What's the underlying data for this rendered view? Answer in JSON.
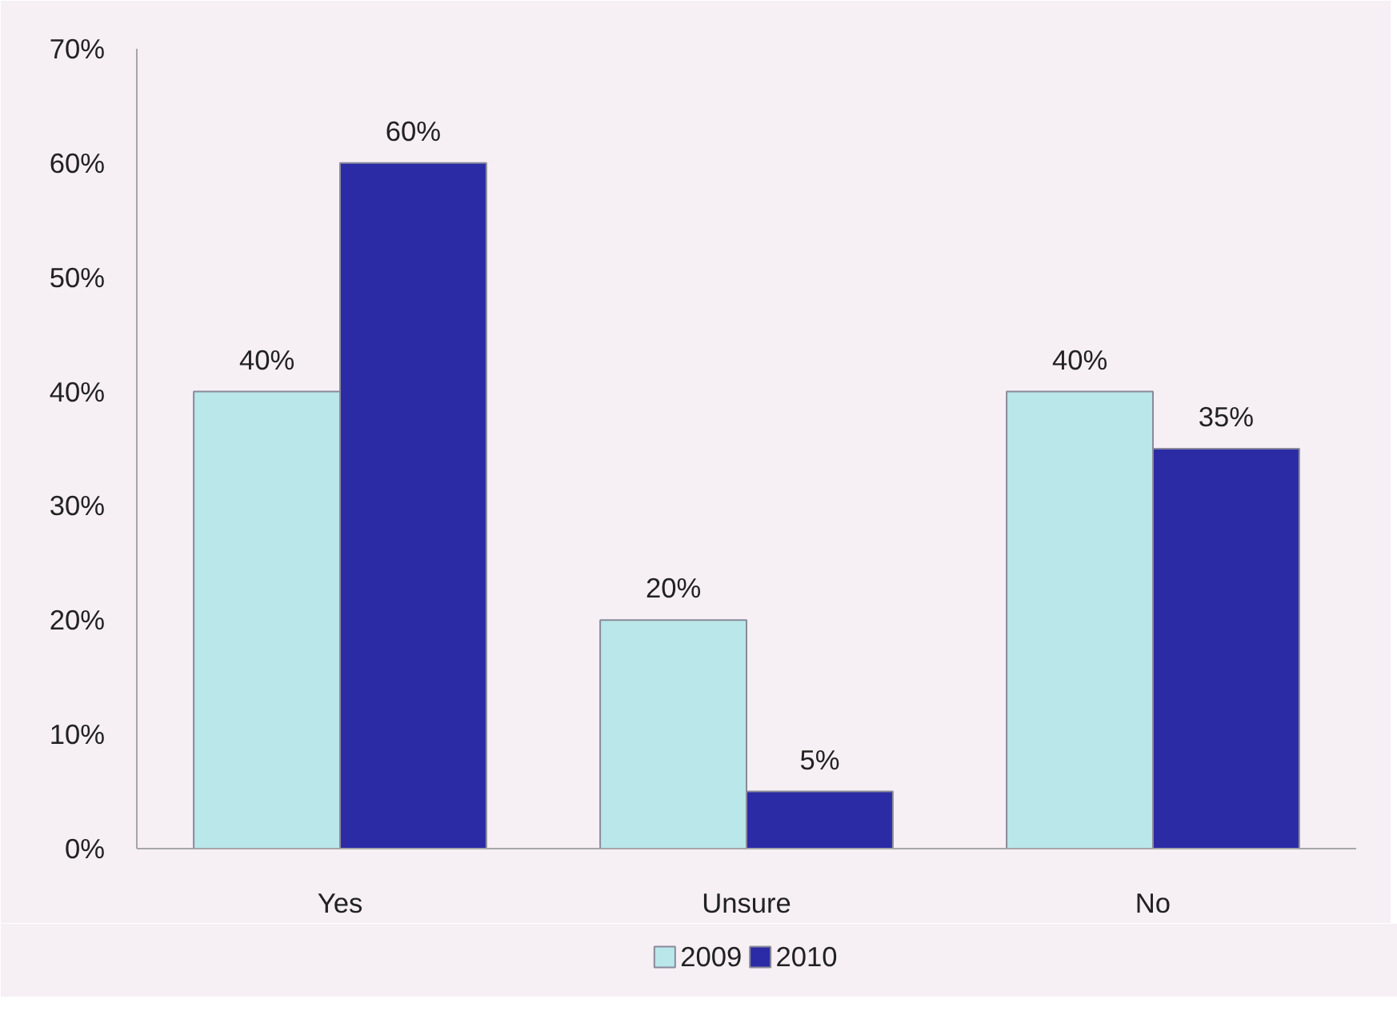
{
  "chart_data": {
    "type": "bar",
    "categories": [
      "Yes",
      "Unsure",
      "No"
    ],
    "series": [
      {
        "name": "2009",
        "color": "#b9e7ea",
        "values": [
          40,
          20,
          40
        ],
        "value_labels": [
          "40%",
          "20%",
          "40%"
        ]
      },
      {
        "name": "2010",
        "color": "#2b2ba6",
        "values": [
          60,
          5,
          35
        ],
        "value_labels": [
          "60%",
          "5%",
          "35%"
        ]
      }
    ],
    "ylim": [
      0,
      70
    ],
    "yticks": [
      {
        "value": 0,
        "label": "0%"
      },
      {
        "value": 10,
        "label": "10%"
      },
      {
        "value": 20,
        "label": "20%"
      },
      {
        "value": 30,
        "label": "30%"
      },
      {
        "value": 40,
        "label": "40%"
      },
      {
        "value": 50,
        "label": "50%"
      },
      {
        "value": 60,
        "label": "60%"
      },
      {
        "value": 70,
        "label": "70%"
      }
    ],
    "grid": false,
    "legend": "bottom"
  }
}
